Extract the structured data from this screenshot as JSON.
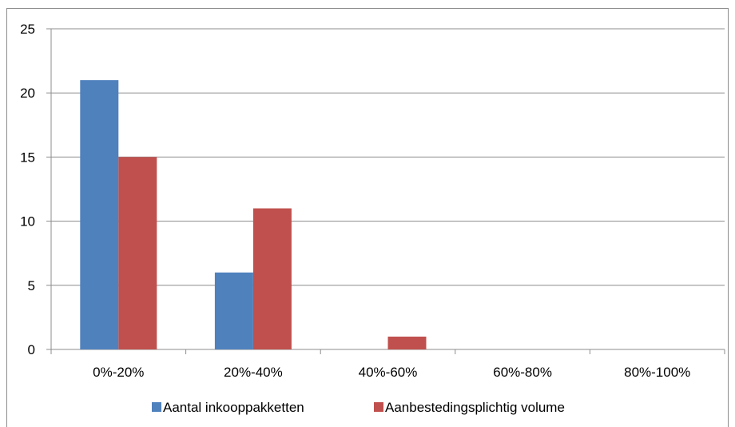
{
  "chart_data": {
    "type": "bar",
    "categories": [
      "0%-20%",
      "20%-40%",
      "40%-60%",
      "60%-80%",
      "80%-100%"
    ],
    "series": [
      {
        "name": "Aantal inkooppakketten",
        "values": [
          21,
          6,
          0,
          0,
          0
        ],
        "color": "#4f81bd"
      },
      {
        "name": "Aanbestedingsplichtig volume",
        "values": [
          15,
          11,
          1,
          0,
          0
        ],
        "color": "#c0504d"
      }
    ],
    "yticks": [
      0,
      5,
      10,
      15,
      20,
      25
    ],
    "ylim": [
      0,
      25
    ],
    "grid": true,
    "legend_position": "bottom"
  }
}
